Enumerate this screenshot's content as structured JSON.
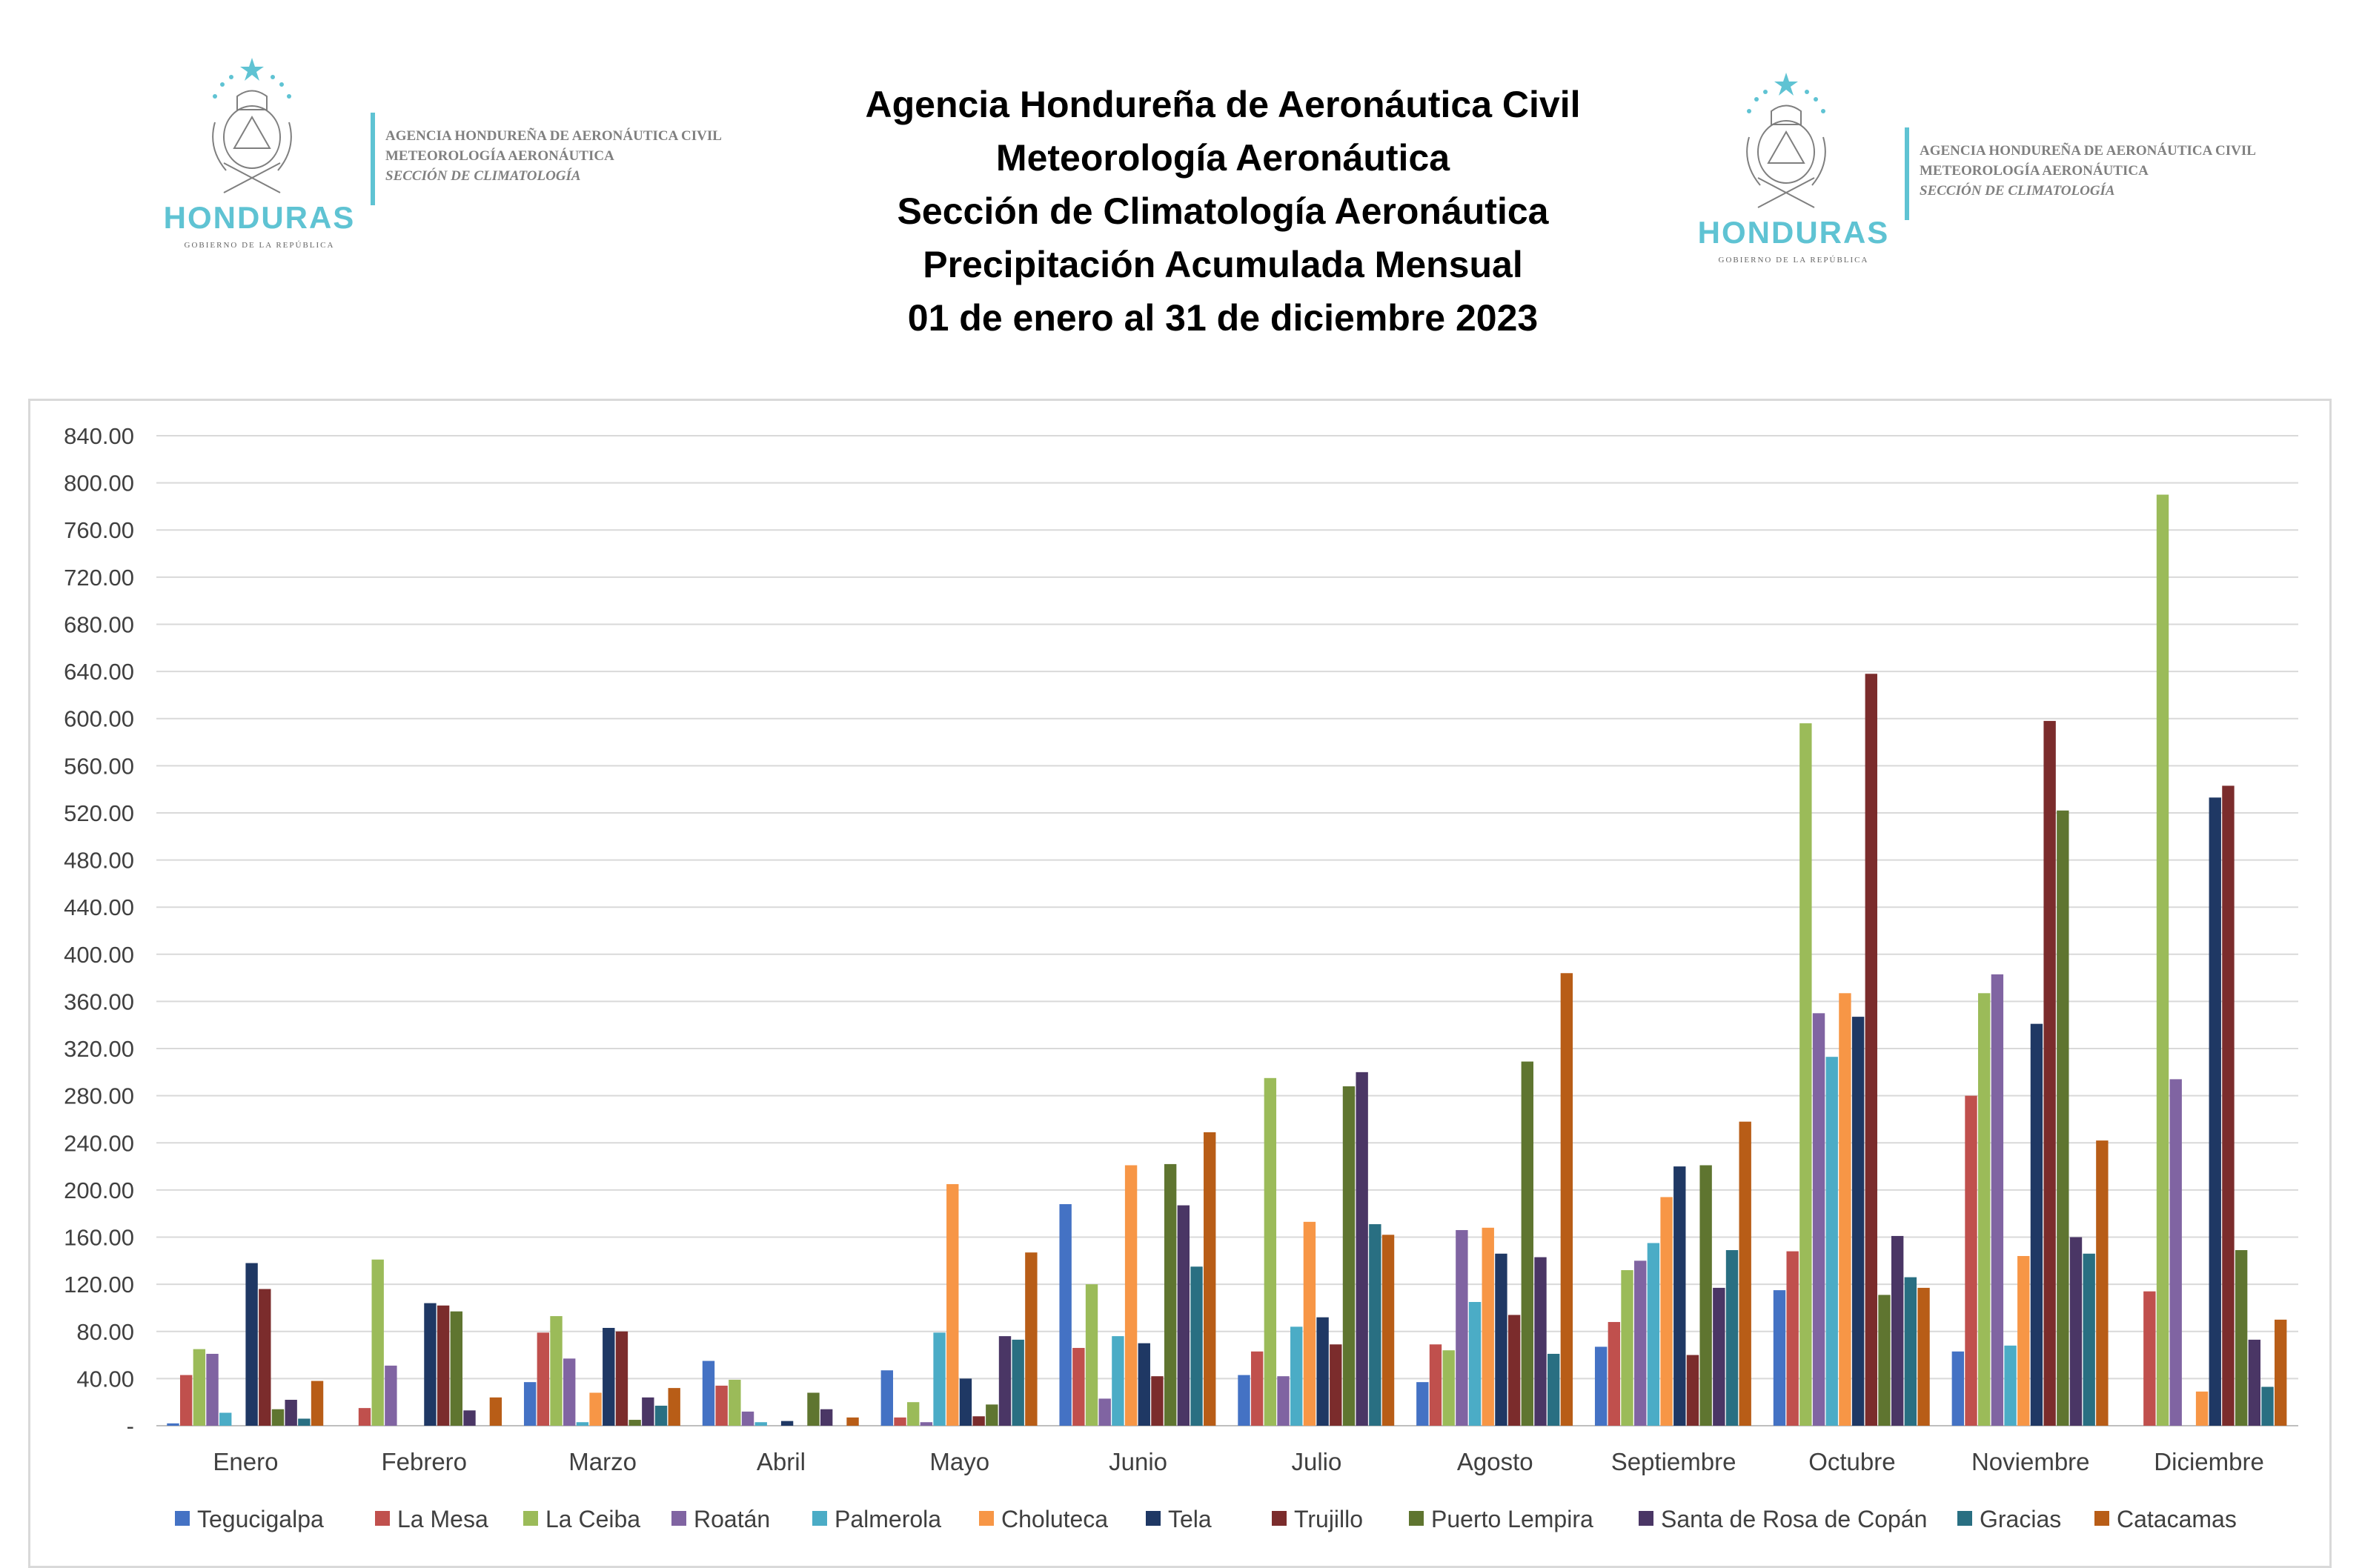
{
  "header": {
    "logo_text_lines": [
      "AGENCIA HONDUREÑA DE AERONÁUTICA CIVIL",
      "METEOROLOGÍA AERONÁUTICA",
      "SECCIÓN DE CLIMATOLOGÍA"
    ],
    "logo_brand": "HONDURAS",
    "logo_subbrand": "GOBIERNO DE LA REPÚBLICA",
    "brand_color": "#5fc3d3"
  },
  "chart_data": {
    "type": "bar",
    "title_lines": [
      "Agencia Hondureña de Aeronáutica Civil",
      "Meteorología Aeronáutica",
      "Sección de Climatología Aeronáutica",
      "Precipitación Acumulada Mensual",
      "01 de enero al 31 de diciembre 2023"
    ],
    "xlabel": "",
    "ylabel": "",
    "ylim": [
      0,
      840
    ],
    "yticks": [
      0,
      40,
      80,
      120,
      160,
      200,
      240,
      280,
      320,
      360,
      400,
      440,
      480,
      520,
      560,
      600,
      640,
      680,
      720,
      760,
      800,
      840
    ],
    "ytick_labels": [
      "-",
      "40.00",
      "80.00",
      "120.00",
      "160.00",
      "200.00",
      "240.00",
      "280.00",
      "320.00",
      "360.00",
      "400.00",
      "440.00",
      "480.00",
      "520.00",
      "560.00",
      "600.00",
      "640.00",
      "680.00",
      "720.00",
      "760.00",
      "800.00",
      "840.00"
    ],
    "grid": true,
    "legend_position": "bottom",
    "categories": [
      "Enero",
      "Febrero",
      "Marzo",
      "Abril",
      "Mayo",
      "Junio",
      "Julio",
      "Agosto",
      "Septiembre",
      "Octubre",
      "Noviembre",
      "Diciembre"
    ],
    "series": [
      {
        "name": "Tegucigalpa",
        "color": "#4472c4",
        "values": [
          2,
          0,
          37,
          55,
          47,
          188,
          43,
          37,
          67,
          115,
          63,
          0
        ]
      },
      {
        "name": "La Mesa",
        "color": "#c0504d",
        "values": [
          43,
          15,
          79,
          34,
          7,
          66,
          63,
          69,
          88,
          148,
          280,
          114
        ]
      },
      {
        "name": "La Ceiba",
        "color": "#9bbb59",
        "values": [
          65,
          141,
          93,
          39,
          20,
          120,
          295,
          64,
          132,
          596,
          367,
          790
        ]
      },
      {
        "name": "Roatán",
        "color": "#8064a2",
        "values": [
          61,
          51,
          57,
          12,
          3,
          23,
          42,
          166,
          140,
          350,
          383,
          294
        ]
      },
      {
        "name": "Palmerola",
        "color": "#4bacc6",
        "values": [
          11,
          0,
          3,
          3,
          79,
          76,
          84,
          105,
          155,
          313,
          68,
          0
        ]
      },
      {
        "name": "Choluteca",
        "color": "#f79646",
        "values": [
          0,
          0,
          28,
          0,
          205,
          221,
          173,
          168,
          194,
          367,
          144,
          29
        ]
      },
      {
        "name": "Tela",
        "color": "#1f3864",
        "values": [
          138,
          104,
          83,
          4,
          40,
          70,
          92,
          146,
          220,
          347,
          341,
          533
        ]
      },
      {
        "name": "Trujillo",
        "color": "#7b2c2c",
        "values": [
          116,
          102,
          80,
          0,
          8,
          42,
          69,
          94,
          60,
          638,
          598,
          543
        ]
      },
      {
        "name": "Puerto Lempira",
        "color": "#5f7530",
        "values": [
          14,
          97,
          5,
          28,
          18,
          222,
          288,
          309,
          221,
          111,
          522,
          149
        ]
      },
      {
        "name": "Santa de Rosa de Copán",
        "color": "#4a3665",
        "values": [
          22,
          13,
          24,
          14,
          76,
          187,
          300,
          143,
          117,
          161,
          160,
          73
        ]
      },
      {
        "name": "Gracias",
        "color": "#296f82",
        "values": [
          6,
          0,
          17,
          0,
          73,
          135,
          171,
          61,
          149,
          126,
          146,
          33
        ]
      },
      {
        "name": "Catacamas",
        "color": "#b85d17",
        "values": [
          38,
          24,
          32,
          7,
          147,
          249,
          162,
          384,
          258,
          117,
          242,
          90
        ]
      }
    ]
  }
}
